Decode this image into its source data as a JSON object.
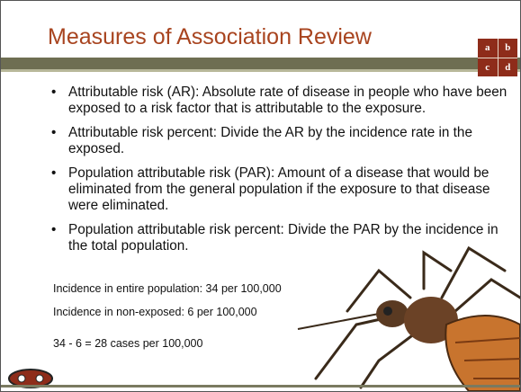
{
  "title": "Measures of Association Review",
  "grid": [
    "a",
    "b",
    "c",
    "d"
  ],
  "bullets": [
    "Attributable risk (AR): Absolute rate of disease in people who have been exposed to a risk factor that is attributable to the exposure.",
    "Attributable risk percent: Divide the AR by the incidence rate in the exposed.",
    "Population attributable risk (PAR): Amount of a disease that would be eliminated from the general population if the exposure to that disease were eliminated.",
    "Population attributable risk percent: Divide the PAR by the incidence in the total population."
  ],
  "notes": [
    "Incidence in entire population: 34 per 100,000",
    "Incidence in non-exposed: 6 per 100,000",
    "34 - 6 = 28 cases per 100,000"
  ]
}
